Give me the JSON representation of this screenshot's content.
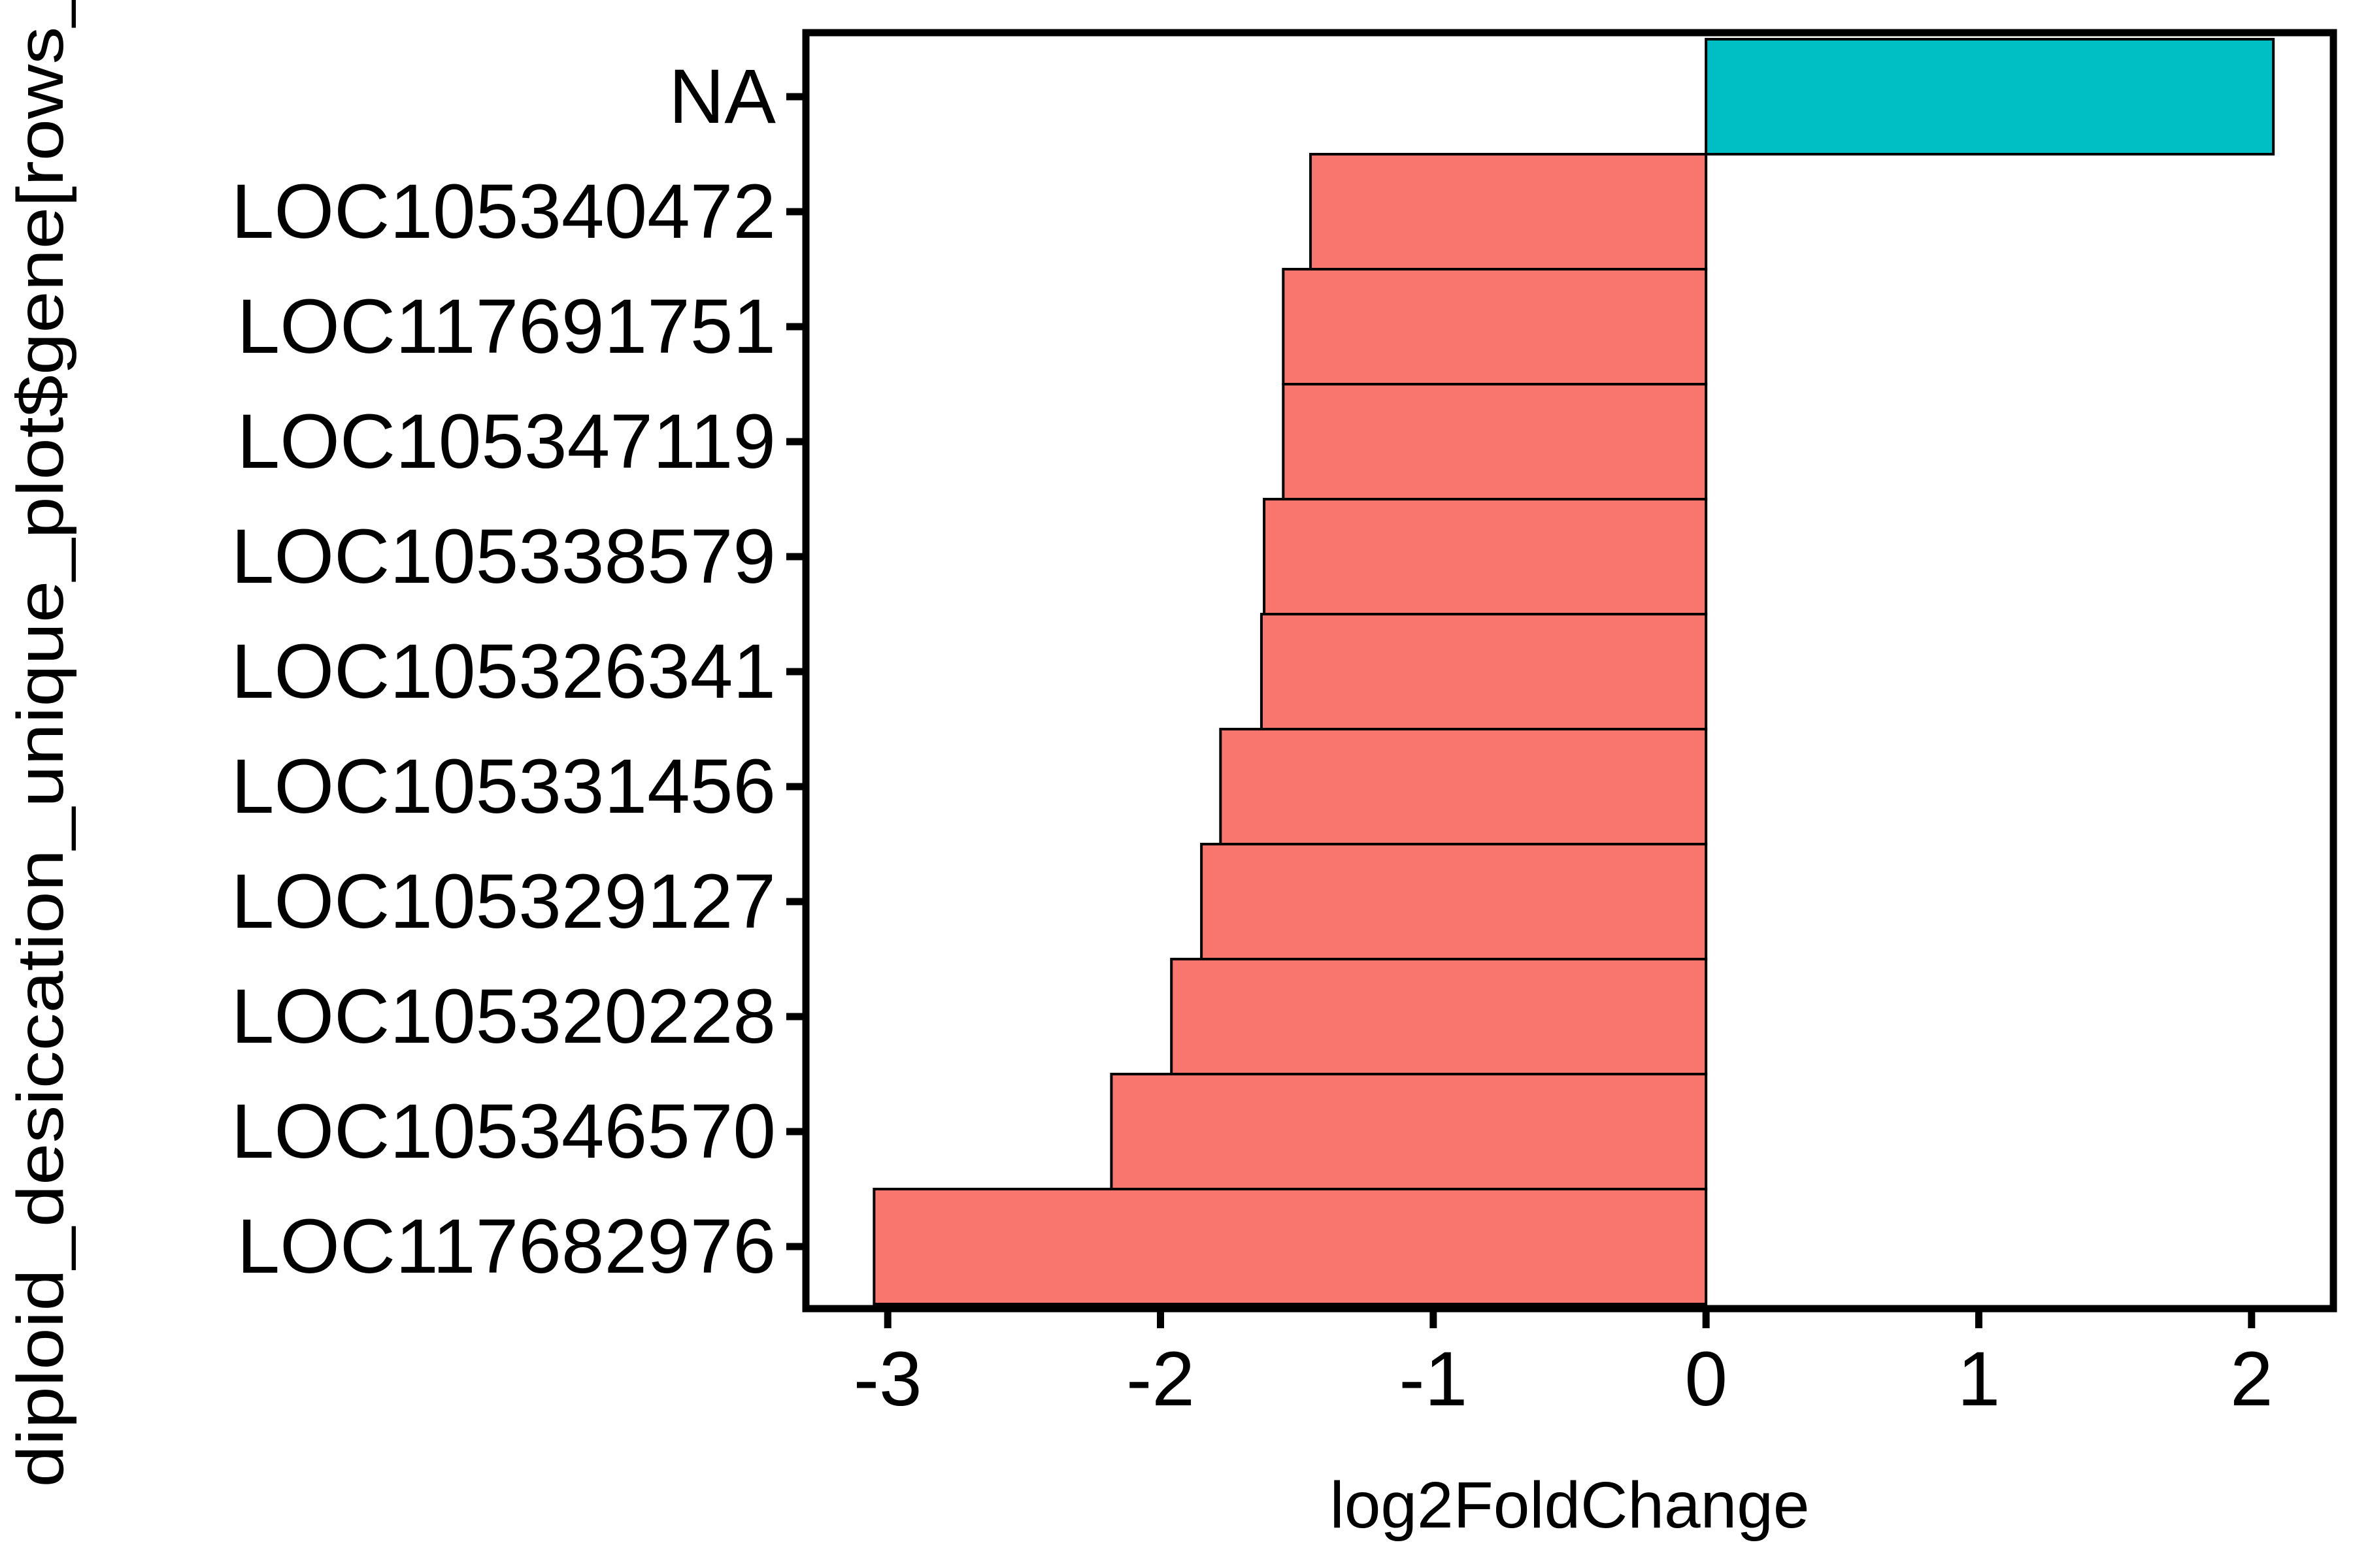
{
  "chart_data": {
    "type": "bar",
    "orientation": "horizontal",
    "title": "",
    "xlabel": "log2FoldChange",
    "ylabel": "diploid_desiccation_unique_plot$gene[rows_",
    "xlim": [
      -3.3,
      2.3
    ],
    "xticks": [
      -3,
      -2,
      -1,
      0,
      1,
      2
    ],
    "xtick_labels": [
      "-3",
      "-2",
      "-1",
      "0",
      "1",
      "2"
    ],
    "categories": [
      "NA",
      "LOC105340472",
      "LOC117691751",
      "LOC105347119",
      "LOC105338579",
      "LOC105326341",
      "LOC105331456",
      "LOC105329127",
      "LOC105320228",
      "LOC105346570",
      "LOC117682976"
    ],
    "values": [
      2.08,
      -1.45,
      -1.55,
      -1.55,
      -1.62,
      -1.63,
      -1.78,
      -1.85,
      -1.96,
      -2.18,
      -3.05
    ],
    "colors": {
      "positive": "#00BFC4",
      "negative": "#F8766D",
      "bar_outline": "#000000",
      "panel_border": "#000000"
    },
    "grid": false,
    "legend": "none"
  }
}
